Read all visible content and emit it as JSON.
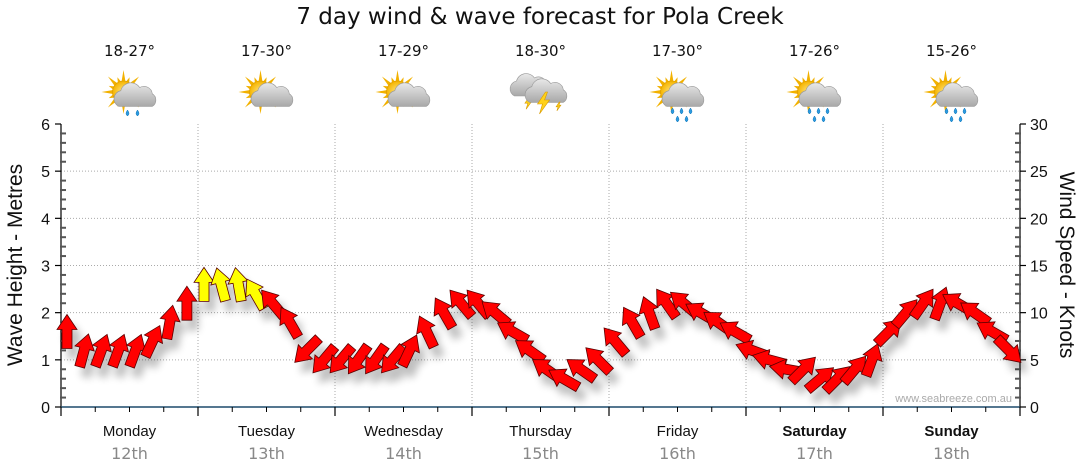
{
  "chart_data": {
    "type": "scatter",
    "title": "7 day wind & wave forecast for Pola Creek",
    "ylabel_left": "Wave Height - Metres",
    "ylabel_right": "Wind Speed - Knots",
    "ylim_left": [
      0,
      6
    ],
    "ylim_right": [
      0,
      30
    ],
    "yticks_left": [
      "0",
      "1",
      "2",
      "3",
      "4",
      "5",
      "6"
    ],
    "yticks_right": [
      "0",
      "5",
      "10",
      "15",
      "20",
      "25",
      "30"
    ],
    "grid": true,
    "watermark": "www.seabreeze.com.au",
    "days": [
      {
        "day": "Monday",
        "date": "12th",
        "temp": "18-27°",
        "icon": "partly-cloudy-showers-icon",
        "bold": false
      },
      {
        "day": "Tuesday",
        "date": "13th",
        "temp": "17-30°",
        "icon": "partly-cloudy-icon",
        "bold": false
      },
      {
        "day": "Wednesday",
        "date": "14th",
        "temp": "17-29°",
        "icon": "partly-cloudy-icon",
        "bold": false
      },
      {
        "day": "Thursday",
        "date": "15th",
        "temp": "18-30°",
        "icon": "thunderstorm-icon",
        "bold": false
      },
      {
        "day": "Friday",
        "date": "16th",
        "temp": "17-30°",
        "icon": "partly-cloudy-rain-icon",
        "bold": false
      },
      {
        "day": "Saturday",
        "date": "17th",
        "temp": "17-26°",
        "icon": "partly-cloudy-rain-icon",
        "bold": true
      },
      {
        "day": "Sunday",
        "date": "18th",
        "temp": "15-26°",
        "icon": "partly-cloudy-rain-icon",
        "bold": true
      }
    ],
    "wind_legend": {
      "normal_color": "#ff0000",
      "strong_color": "#ffff00",
      "strong_threshold_knots": 12
    },
    "series": [
      {
        "name": "Wind Speed (knots) with direction (degrees, arrow points toward)",
        "x_hours": [
          0,
          3,
          6,
          9,
          12,
          15,
          18,
          21,
          24,
          27,
          30,
          33,
          36,
          39,
          42,
          45,
          48,
          51,
          54,
          57,
          60,
          63,
          66,
          69,
          72,
          75,
          78,
          81,
          84,
          87,
          90,
          93,
          96,
          99,
          102,
          105,
          108,
          111,
          114,
          117,
          120,
          123,
          126,
          129,
          132,
          135,
          138,
          141,
          144,
          147,
          150,
          153,
          156,
          159,
          162,
          165
        ],
        "wind_knots": [
          8,
          6,
          6,
          6,
          6,
          7,
          9,
          11,
          13,
          13,
          13,
          12,
          11,
          9,
          6,
          5,
          5,
          5,
          5,
          5,
          6,
          8,
          10,
          11,
          11,
          10,
          8,
          6,
          4,
          3,
          4,
          5,
          7,
          9,
          10,
          11,
          11,
          10,
          9,
          8,
          6,
          5,
          4,
          4,
          3,
          3,
          4,
          5,
          8,
          10,
          11,
          11,
          11,
          10,
          8,
          6
        ],
        "direction_deg": [
          0,
          15,
          20,
          20,
          20,
          25,
          10,
          0,
          0,
          345,
          350,
          330,
          320,
          330,
          225,
          220,
          220,
          215,
          215,
          220,
          25,
          335,
          330,
          320,
          320,
          310,
          300,
          305,
          305,
          300,
          305,
          315,
          320,
          330,
          340,
          325,
          310,
          300,
          305,
          300,
          290,
          285,
          280,
          45,
          50,
          45,
          40,
          20,
          45,
          40,
          35,
          20,
          300,
          305,
          300,
          135
        ]
      }
    ]
  }
}
